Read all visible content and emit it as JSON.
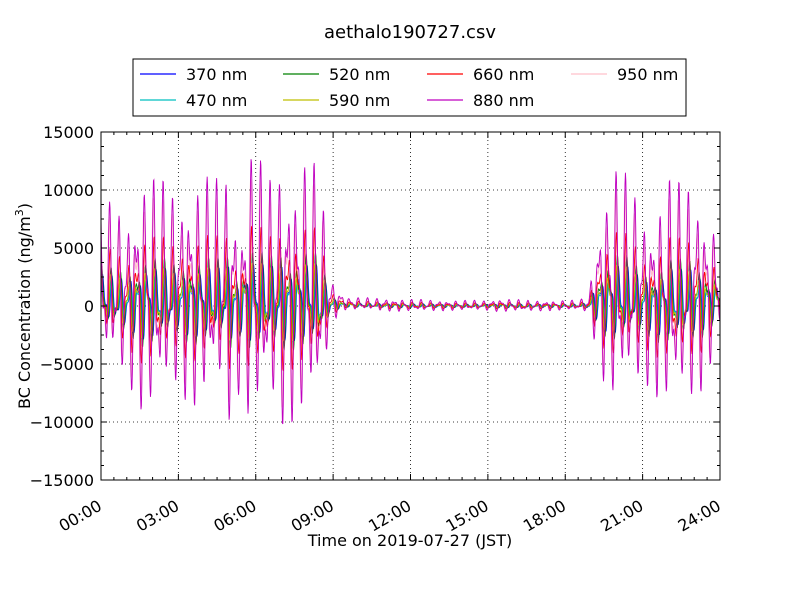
{
  "chart_data": {
    "type": "line",
    "title": "aethalo190727.csv",
    "xlabel": "Time on 2019-07-27 (JST)",
    "ylabel_main": "BC Concentration (ng/m",
    "ylabel_sup": "3",
    "ylabel_close": ")",
    "ylim": [
      -15000,
      15000
    ],
    "xlim_hours": [
      0,
      24
    ],
    "yticks": [
      -15000,
      -10000,
      -5000,
      0,
      5000,
      10000,
      15000
    ],
    "ytick_labels": [
      "−15000",
      "−10000",
      "−5000",
      "0",
      "5000",
      "10000",
      "15000"
    ],
    "xticks_hours": [
      0,
      3,
      6,
      9,
      12,
      15,
      18,
      21,
      24
    ],
    "xtick_labels": [
      "00:00",
      "03:00",
      "06:00",
      "09:00",
      "12:00",
      "15:00",
      "18:00",
      "21:00",
      "24:00"
    ],
    "grid": true,
    "legend_position": "top-outside",
    "series": [
      {
        "name": "370 nm",
        "color": "#0000ff"
      },
      {
        "name": "470 nm",
        "color": "#00bfbf"
      },
      {
        "name": "520 nm",
        "color": "#008000"
      },
      {
        "name": "590 nm",
        "color": "#bfbf00"
      },
      {
        "name": "660 nm",
        "color": "#ff0000"
      },
      {
        "name": "880 nm",
        "color": "#bf00bf"
      },
      {
        "name": "950 nm",
        "color": "#ffc0cb"
      }
    ],
    "envelope_880nm": {
      "hour": [
        0.0,
        0.5,
        1.0,
        1.7,
        2.0,
        2.7,
        3.0,
        3.5,
        4.0,
        4.7,
        5.0,
        5.4,
        5.7,
        6.0,
        6.5,
        7.0,
        7.5,
        8.0,
        8.5,
        8.9,
        9.5,
        10.5,
        12.0,
        13.5,
        15.0,
        15.5,
        16.5,
        17.5,
        18.5,
        18.9,
        19.3,
        19.7,
        20.0,
        20.5,
        21.0,
        21.5,
        22.0,
        22.5,
        23.0,
        23.5,
        24.0
      ],
      "max": [
        10000,
        8500,
        8000,
        12300,
        11600,
        10500,
        10000,
        11300,
        11500,
        11000,
        13000,
        6000,
        15000,
        13800,
        11000,
        13000,
        11800,
        13500,
        11500,
        2500,
        800,
        700,
        600,
        500,
        500,
        700,
        500,
        500,
        500,
        900,
        8000,
        11500,
        12500,
        11000,
        8500,
        9000,
        11500,
        10700,
        11300,
        8500,
        6000
      ],
      "min": [
        -6000,
        -5500,
        -6500,
        -10000,
        -9800,
        -8000,
        -7000,
        -9200,
        -9000,
        -8000,
        -11000,
        -7000,
        -10200,
        -11000,
        -9000,
        -11000,
        -10000,
        -9500,
        -10000,
        -1500,
        -300,
        -400,
        -500,
        -400,
        -400,
        -500,
        -500,
        -400,
        -400,
        -600,
        -5000,
        -8500,
        -9000,
        -8000,
        -6500,
        -8000,
        -9500,
        -9200,
        -8500,
        -6500,
        -2000
      ]
    }
  }
}
